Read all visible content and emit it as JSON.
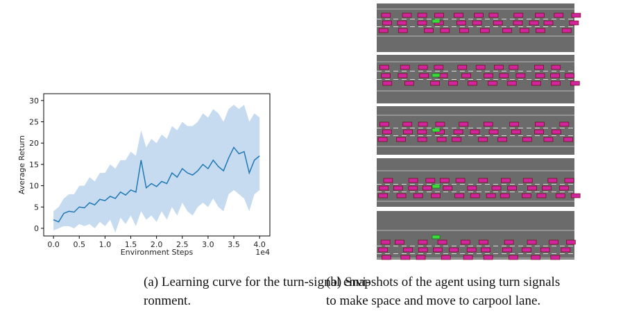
{
  "chart_data": {
    "type": "line",
    "xlabel": "Environment Steps",
    "ylabel": "Average Return",
    "x_offset_label": "1e4",
    "x": [
      0.0,
      0.1,
      0.2,
      0.3,
      0.4,
      0.5,
      0.6,
      0.7,
      0.8,
      0.9,
      1.0,
      1.1,
      1.2,
      1.3,
      1.4,
      1.5,
      1.6,
      1.7,
      1.8,
      1.9,
      2.0,
      2.1,
      2.2,
      2.3,
      2.4,
      2.5,
      2.6,
      2.7,
      2.8,
      2.9,
      3.0,
      3.1,
      3.2,
      3.3,
      3.4,
      3.5,
      3.6,
      3.7,
      3.8,
      3.9,
      4.0
    ],
    "series": [
      {
        "color": "#1f77b4",
        "band_color": "#c6dbef",
        "values": [
          2,
          1.5,
          3.5,
          4,
          3.8,
          5,
          4.8,
          6,
          5.5,
          6.8,
          6.5,
          7.5,
          7,
          8.5,
          7.8,
          9,
          8.5,
          16,
          9.5,
          10.5,
          9.8,
          11,
          10.5,
          13,
          12,
          14,
          13,
          12.5,
          13.5,
          15,
          14,
          16,
          14.5,
          13.5,
          16.5,
          19,
          17.5,
          18,
          13,
          16,
          17
        ],
        "lower": [
          -0.5,
          0,
          0.5,
          0.5,
          0,
          1,
          0.5,
          1,
          0,
          1.5,
          0.5,
          2,
          -1,
          2.5,
          1,
          3,
          0.5,
          4,
          2,
          3,
          1.5,
          4,
          2,
          5,
          3,
          6,
          4,
          3,
          5,
          6,
          5,
          7,
          5,
          4,
          8,
          9,
          8,
          7,
          4,
          8,
          9
        ],
        "upper": [
          4,
          5,
          7,
          8,
          8,
          10,
          10,
          12,
          11,
          13,
          13,
          15,
          14,
          16,
          16,
          18,
          17,
          23,
          19,
          21,
          20,
          22,
          21,
          24,
          23,
          25,
          24,
          24,
          25,
          27,
          26,
          28,
          27,
          25,
          28,
          29,
          28,
          29,
          25,
          27,
          26
        ]
      }
    ],
    "xlim": [
      -0.19,
      4.2
    ],
    "ylim": [
      -1.8,
      31.6
    ],
    "xticks": [
      {
        "value": 0,
        "label": "0.0"
      },
      {
        "value": 0.5,
        "label": "0.5"
      },
      {
        "value": 1,
        "label": "1.0"
      },
      {
        "value": 1.5,
        "label": "1.5"
      },
      {
        "value": 2,
        "label": "2.0"
      },
      {
        "value": 2.5,
        "label": "2.5"
      },
      {
        "value": 3,
        "label": "3.0"
      },
      {
        "value": 3.5,
        "label": "3.5"
      },
      {
        "value": 4,
        "label": "4.0"
      }
    ],
    "yticks": [
      0,
      5,
      10,
      15,
      20,
      25,
      30
    ]
  },
  "captions": {
    "a": [
      "(a) Learning curve for the turn-signal envi-",
      "ronment."
    ],
    "b": [
      "(b) Snapshots of the agent using turn signals",
      "to make space and move to carpool lane."
    ]
  }
}
